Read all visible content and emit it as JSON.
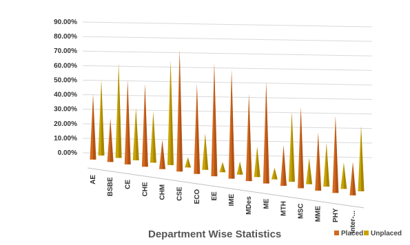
{
  "chart_data": {
    "type": "bar",
    "bar_shape": "3d-cone",
    "title": "Department Wise Statistics",
    "categories": [
      "AE",
      "BSBE",
      "CE",
      "CHE",
      "CHM",
      "CSE",
      "ECO",
      "EE",
      "IME",
      "MDes",
      "ME",
      "MTH",
      "MSC",
      "MME",
      "PHY",
      "Inter-..."
    ],
    "series": [
      {
        "name": "Placed",
        "color": "#d2691e",
        "values": [
          45,
          30,
          58,
          57,
          20,
          84,
          62,
          78,
          75,
          60,
          70,
          28,
          56,
          40,
          53,
          23
        ]
      },
      {
        "name": "Unplaced",
        "color": "#c8a400",
        "values": [
          52,
          65,
          36,
          35,
          72,
          7,
          25,
          7,
          9,
          21,
          8,
          48,
          18,
          30,
          18,
          45
        ]
      }
    ],
    "yticks": [
      "0.00%",
      "10.00%",
      "20.00%",
      "30.00%",
      "40.00%",
      "50.00%",
      "60.00%",
      "70.00%",
      "80.00%",
      "90.00%"
    ],
    "ylim": [
      0,
      90
    ],
    "grid": true,
    "legend_position": "bottom-right"
  }
}
